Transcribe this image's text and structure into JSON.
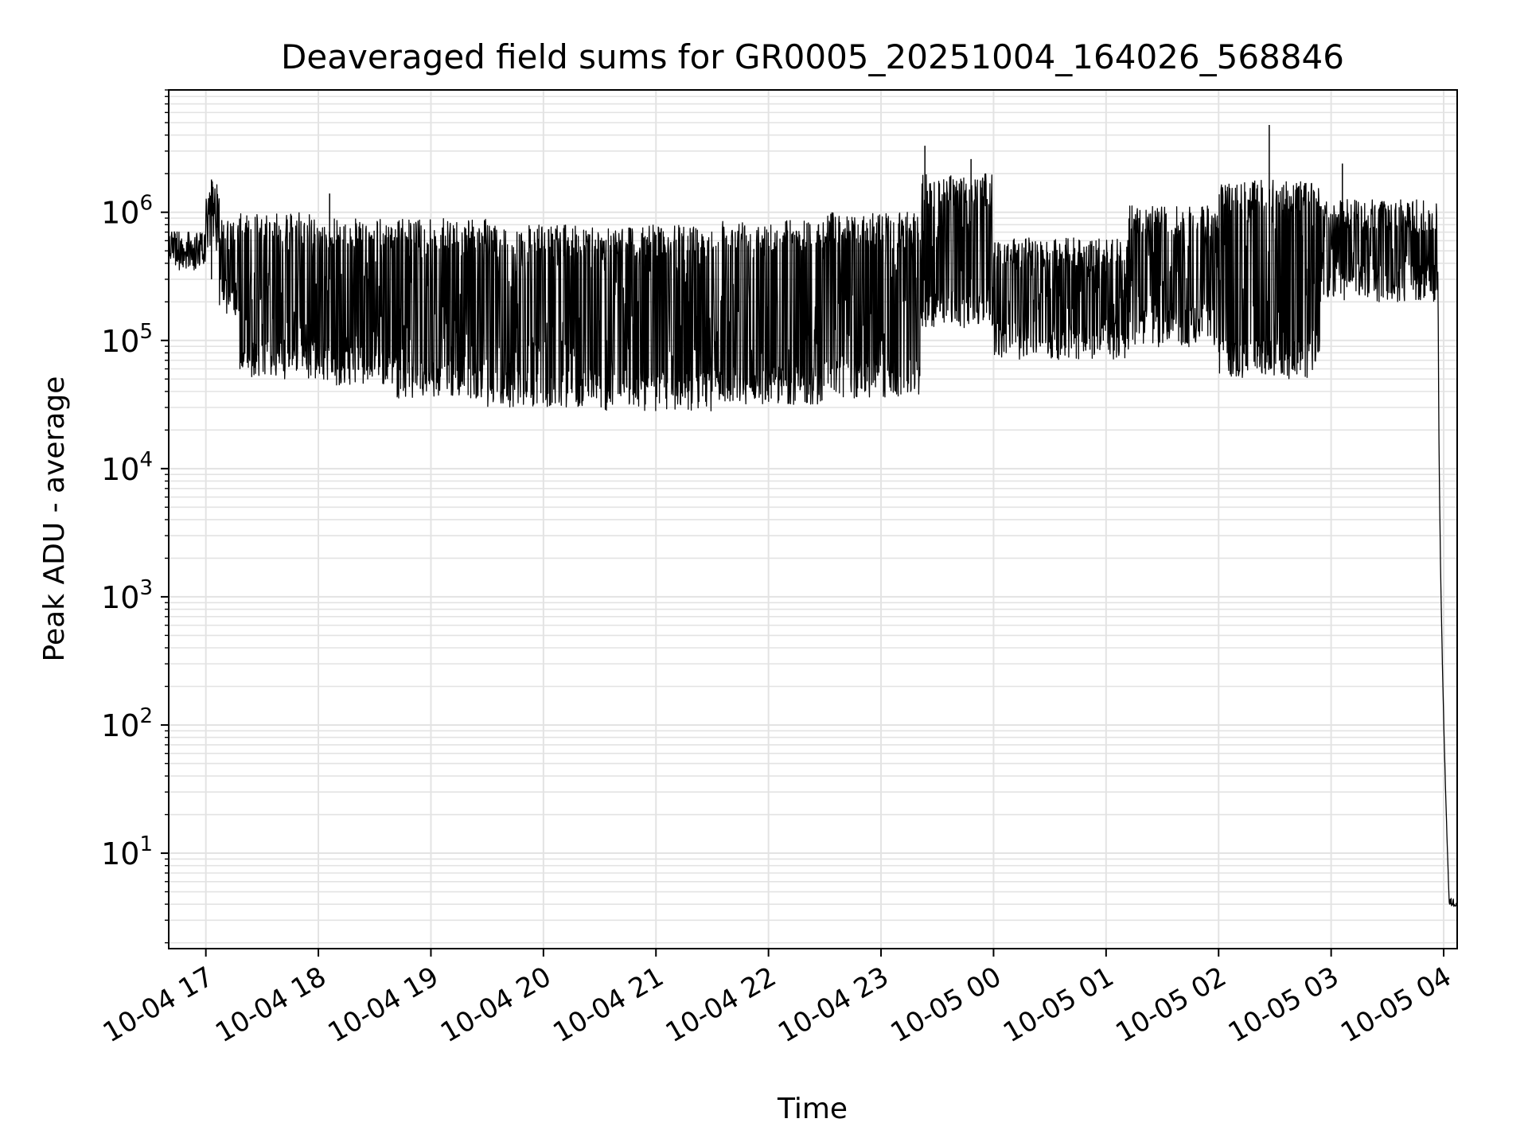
{
  "chart_data": {
    "type": "line",
    "title": "Deaveraged field sums for GR0005_20251004_164026_568846",
    "xlabel": "Time",
    "ylabel": "Peak ADU - average",
    "yscale": "log",
    "ylim": [
      1.8,
      9000000
    ],
    "xlim_hours": [
      16.67,
      28.12
    ],
    "grid": true,
    "grid_minor": true,
    "line_color": "#000000",
    "x_ticks": [
      {
        "hour": 17,
        "label": "10-04 17"
      },
      {
        "hour": 18,
        "label": "10-04 18"
      },
      {
        "hour": 19,
        "label": "10-04 19"
      },
      {
        "hour": 20,
        "label": "10-04 20"
      },
      {
        "hour": 21,
        "label": "10-04 21"
      },
      {
        "hour": 22,
        "label": "10-04 22"
      },
      {
        "hour": 23,
        "label": "10-04 23"
      },
      {
        "hour": 24,
        "label": "10-05 00"
      },
      {
        "hour": 25,
        "label": "10-05 01"
      },
      {
        "hour": 26,
        "label": "10-05 02"
      },
      {
        "hour": 27,
        "label": "10-05 03"
      },
      {
        "hour": 28,
        "label": "10-05 04"
      }
    ],
    "y_ticks": [
      {
        "exp": 1,
        "base": "10",
        "sup": "1"
      },
      {
        "exp": 2,
        "base": "10",
        "sup": "2"
      },
      {
        "exp": 3,
        "base": "10",
        "sup": "3"
      },
      {
        "exp": 4,
        "base": "10",
        "sup": "4"
      },
      {
        "exp": 5,
        "base": "10",
        "sup": "5"
      },
      {
        "exp": 6,
        "base": "10",
        "sup": "6"
      }
    ],
    "envelope": {
      "note": "Dense noisy time series; segments give approximate upper/lower bounds (log10 of value) over time in hours since 10-04 00:00",
      "segments": [
        {
          "x": [
            16.67,
            17.0
          ],
          "hi": 5.85,
          "lo": 5.55
        },
        {
          "x": [
            17.0,
            17.12
          ],
          "hi": 6.25,
          "lo": 5.7
        },
        {
          "x": [
            17.12,
            17.3
          ],
          "hi": 5.95,
          "lo": 5.2
        },
        {
          "x": [
            17.3,
            18.0
          ],
          "hi": 6.0,
          "lo": 4.7
        },
        {
          "x": [
            18.0,
            18.7
          ],
          "hi": 5.95,
          "lo": 4.65
        },
        {
          "x": [
            18.7,
            19.5
          ],
          "hi": 5.95,
          "lo": 4.55
        },
        {
          "x": [
            19.5,
            20.5
          ],
          "hi": 5.9,
          "lo": 4.48
        },
        {
          "x": [
            20.5,
            21.5
          ],
          "hi": 5.9,
          "lo": 4.45
        },
        {
          "x": [
            21.5,
            22.5
          ],
          "hi": 5.95,
          "lo": 4.5
        },
        {
          "x": [
            22.5,
            23.35
          ],
          "hi": 6.0,
          "lo": 4.55
        },
        {
          "x": [
            23.35,
            24.0
          ],
          "hi": 6.3,
          "lo": 5.1
        },
        {
          "x": [
            24.0,
            25.2
          ],
          "hi": 5.8,
          "lo": 4.85
        },
        {
          "x": [
            25.2,
            26.0
          ],
          "hi": 6.05,
          "lo": 4.95
        },
        {
          "x": [
            26.0,
            26.9
          ],
          "hi": 6.25,
          "lo": 4.7
        },
        {
          "x": [
            26.9,
            27.95
          ],
          "hi": 6.1,
          "lo": 5.3
        },
        {
          "x": [
            27.95,
            28.05
          ],
          "hi": 6.0,
          "lo": 0.6
        },
        {
          "x": [
            28.05,
            28.12
          ],
          "hi": 0.65,
          "lo": 0.58
        }
      ],
      "spikes": [
        {
          "x": 17.05,
          "v": 1800000
        },
        {
          "x": 18.1,
          "v": 1400000
        },
        {
          "x": 23.39,
          "v": 3300000
        },
        {
          "x": 23.8,
          "v": 2600000
        },
        {
          "x": 26.45,
          "v": 4800000
        },
        {
          "x": 27.1,
          "v": 2400000
        }
      ],
      "end_value": 4
    }
  }
}
